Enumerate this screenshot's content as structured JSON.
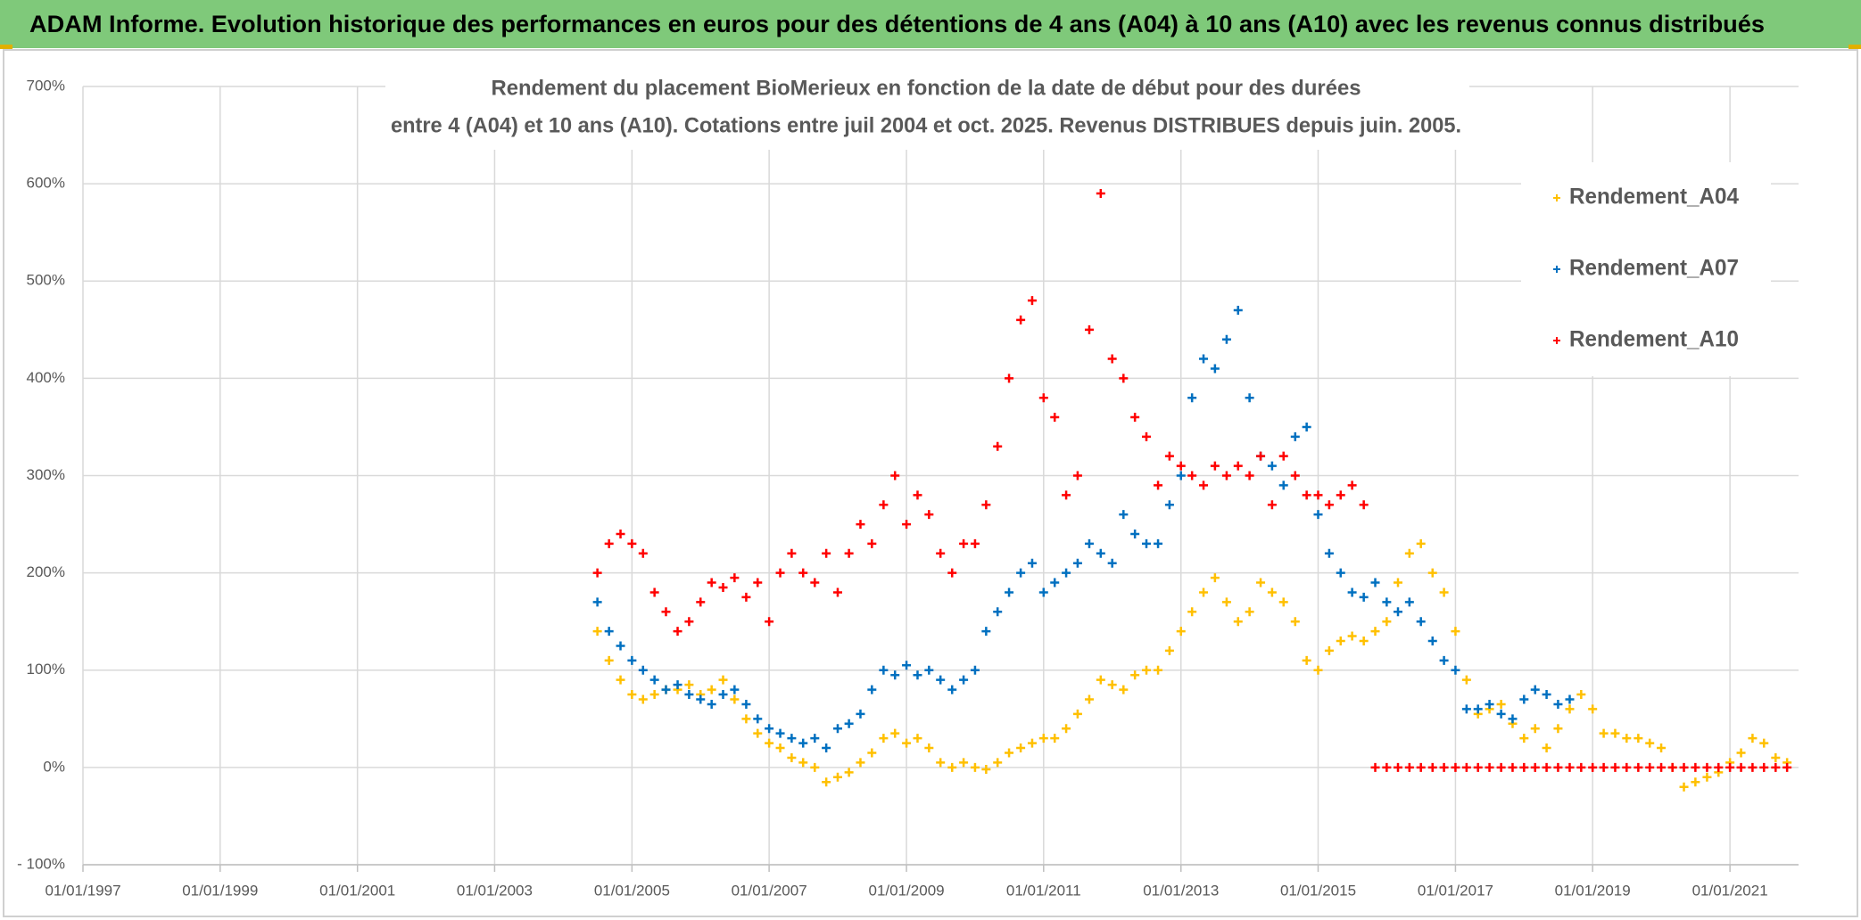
{
  "header": {
    "title": "ADAM Informe. Evolution historique des performances en euros pour des détentions de 4 ans (A04) à 10 ans (A10) avec les revenus connus distribués"
  },
  "chart_data": {
    "type": "scatter",
    "title_lines": [
      "Rendement du placement BioMerieux en fonction de la date de début pour des durées",
      "entre 4 (A04) et 10 ans (A10). Cotations entre juil 2004 et oct. 2025. Revenus DISTRIBUES depuis juin. 2005."
    ],
    "x": [
      "2004-07-01",
      "2004-09-01",
      "2004-11-01",
      "2005-01-01",
      "2005-03-01",
      "2005-05-01",
      "2005-07-01",
      "2005-09-01",
      "2005-11-01",
      "2006-01-01",
      "2006-03-01",
      "2006-05-01",
      "2006-07-01",
      "2006-09-01",
      "2006-11-01",
      "2007-01-01",
      "2007-03-01",
      "2007-05-01",
      "2007-07-01",
      "2007-09-01",
      "2007-11-01",
      "2008-01-01",
      "2008-03-01",
      "2008-05-01",
      "2008-07-01",
      "2008-09-01",
      "2008-11-01",
      "2009-01-01",
      "2009-03-01",
      "2009-05-01",
      "2009-07-01",
      "2009-09-01",
      "2009-11-01",
      "2010-01-01",
      "2010-03-01",
      "2010-05-01",
      "2010-07-01",
      "2010-09-01",
      "2010-11-01",
      "2011-01-01",
      "2011-03-01",
      "2011-05-01",
      "2011-07-01",
      "2011-09-01",
      "2011-11-01",
      "2012-01-01",
      "2012-03-01",
      "2012-05-01",
      "2012-07-01",
      "2012-09-01",
      "2012-11-01",
      "2013-01-01",
      "2013-03-01",
      "2013-05-01",
      "2013-07-01",
      "2013-09-01",
      "2013-11-01",
      "2014-01-01",
      "2014-03-01",
      "2014-05-01",
      "2014-07-01",
      "2014-09-01",
      "2014-11-01",
      "2015-01-01",
      "2015-03-01",
      "2015-05-01",
      "2015-07-01",
      "2015-09-01",
      "2015-11-01",
      "2016-01-01",
      "2016-03-01",
      "2016-05-01",
      "2016-07-01",
      "2016-09-01",
      "2016-11-01",
      "2017-01-01",
      "2017-03-01",
      "2017-05-01",
      "2017-07-01",
      "2017-09-01",
      "2017-11-01",
      "2018-01-01",
      "2018-03-01",
      "2018-05-01",
      "2018-07-01",
      "2018-09-01",
      "2018-11-01",
      "2019-01-01",
      "2019-03-01",
      "2019-05-01",
      "2019-07-01",
      "2019-09-01",
      "2019-11-01",
      "2020-01-01",
      "2020-03-01",
      "2020-05-01",
      "2020-07-01",
      "2020-09-01",
      "2020-11-01",
      "2021-01-01",
      "2021-03-01",
      "2021-05-01",
      "2021-07-01",
      "2021-09-01",
      "2021-11-01"
    ],
    "series": [
      {
        "name": "Rendement_A04",
        "color": "#ffc000",
        "values": [
          140,
          110,
          90,
          75,
          70,
          75,
          80,
          80,
          85,
          75,
          80,
          90,
          70,
          50,
          35,
          25,
          20,
          10,
          5,
          0,
          -15,
          -10,
          -5,
          5,
          15,
          30,
          35,
          25,
          30,
          20,
          5,
          0,
          5,
          0,
          -2,
          5,
          15,
          20,
          25,
          30,
          30,
          40,
          55,
          70,
          90,
          85,
          80,
          95,
          100,
          100,
          120,
          140,
          160,
          180,
          195,
          170,
          150,
          160,
          190,
          180,
          170,
          150,
          110,
          100,
          120,
          130,
          135,
          130,
          140,
          150,
          190,
          220,
          230,
          200,
          180,
          140,
          90,
          55,
          60,
          65,
          45,
          30,
          40,
          20,
          40,
          60,
          75,
          60,
          35,
          35,
          30,
          30,
          25,
          20,
          0,
          -20,
          -15,
          -10,
          -5,
          5,
          15,
          30,
          25,
          10,
          5
        ]
      },
      {
        "name": "Rendement_A07",
        "color": "#0070c0",
        "values": [
          170,
          140,
          125,
          110,
          100,
          90,
          80,
          85,
          75,
          70,
          65,
          75,
          80,
          65,
          50,
          40,
          35,
          30,
          25,
          30,
          20,
          40,
          45,
          55,
          80,
          100,
          95,
          105,
          95,
          100,
          90,
          80,
          90,
          100,
          140,
          160,
          180,
          200,
          210,
          180,
          190,
          200,
          210,
          230,
          220,
          210,
          260,
          240,
          230,
          230,
          270,
          300,
          380,
          420,
          410,
          440,
          470,
          380,
          320,
          310,
          290,
          340,
          350,
          260,
          220,
          200,
          180,
          175,
          190,
          170,
          160,
          170,
          150,
          130,
          110,
          100,
          60,
          60,
          65,
          55,
          50,
          70,
          80,
          75,
          65,
          70,
          null,
          null,
          null,
          null,
          null,
          null,
          null,
          null,
          null,
          null,
          null,
          null,
          null,
          null,
          null,
          null,
          null,
          null,
          null
        ]
      },
      {
        "name": "Rendement_A10",
        "color": "#ff0000",
        "values": [
          200,
          230,
          240,
          230,
          220,
          180,
          160,
          140,
          150,
          170,
          190,
          185,
          195,
          175,
          190,
          150,
          200,
          220,
          200,
          190,
          220,
          180,
          220,
          250,
          230,
          270,
          300,
          250,
          280,
          260,
          220,
          200,
          230,
          230,
          270,
          330,
          400,
          460,
          480,
          380,
          360,
          280,
          300,
          450,
          590,
          420,
          400,
          360,
          340,
          290,
          320,
          310,
          300,
          290,
          310,
          300,
          310,
          300,
          320,
          270,
          320,
          300,
          280,
          280,
          270,
          280,
          290,
          270,
          0,
          0,
          0,
          0,
          0,
          0,
          0,
          0,
          0,
          0,
          0,
          0,
          0,
          0,
          0,
          0,
          0,
          0,
          0,
          0,
          0,
          0,
          0,
          0,
          0,
          0,
          0,
          0,
          0,
          0,
          0,
          0,
          0,
          0,
          0,
          0,
          0
        ]
      }
    ],
    "xlim": [
      "1997-01-01",
      "2022-01-01"
    ],
    "xticks": [
      {
        "value": "1997-01-01",
        "label": "01/01/1997"
      },
      {
        "value": "1999-01-01",
        "label": "01/01/1999"
      },
      {
        "value": "2001-01-01",
        "label": "01/01/2001"
      },
      {
        "value": "2003-01-01",
        "label": "01/01/2003"
      },
      {
        "value": "2005-01-01",
        "label": "01/01/2005"
      },
      {
        "value": "2007-01-01",
        "label": "01/01/2007"
      },
      {
        "value": "2009-01-01",
        "label": "01/01/2009"
      },
      {
        "value": "2011-01-01",
        "label": "01/01/2011"
      },
      {
        "value": "2013-01-01",
        "label": "01/01/2013"
      },
      {
        "value": "2015-01-01",
        "label": "01/01/2015"
      },
      {
        "value": "2017-01-01",
        "label": "01/01/2017"
      },
      {
        "value": "2019-01-01",
        "label": "01/01/2019"
      },
      {
        "value": "2021-01-01",
        "label": "01/01/2021"
      }
    ],
    "ylim": [
      -100,
      700
    ],
    "yticks": [
      {
        "value": -100,
        "label": "- 100%"
      },
      {
        "value": 0,
        "label": "0%"
      },
      {
        "value": 100,
        "label": "100%"
      },
      {
        "value": 200,
        "label": "200%"
      },
      {
        "value": 300,
        "label": "300%"
      },
      {
        "value": 400,
        "label": "400%"
      },
      {
        "value": 500,
        "label": "500%"
      },
      {
        "value": 600,
        "label": "600%"
      },
      {
        "value": 700,
        "label": "700%"
      }
    ],
    "grid": true,
    "legend": "top-right"
  }
}
